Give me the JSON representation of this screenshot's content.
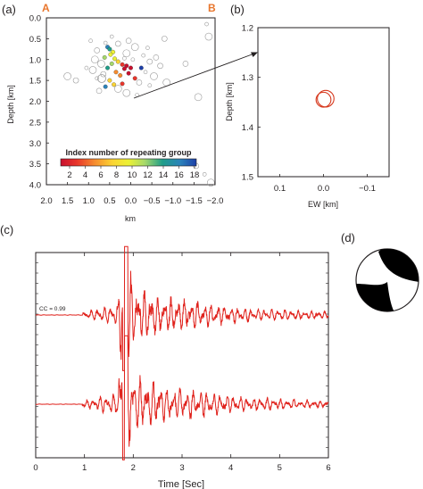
{
  "colors": {
    "trace": "#e0231d",
    "axis": "#231f20",
    "section_letter": "#e8762c",
    "background_events": "#9b9b9b",
    "circle": "#d6381d",
    "colorbar": [
      "#c8102e",
      "#e8362b",
      "#f68c2f",
      "#fbd434",
      "#ecf135",
      "#a6d96a",
      "#1f9e89",
      "#2b83ba",
      "#1c3fa8"
    ]
  },
  "chart_data": [
    {
      "id": "a",
      "type": "scatter",
      "panel_label": "(a)",
      "section_letters": [
        "A",
        "B"
      ],
      "xlabel": "km",
      "ylabel": "Depth [km]",
      "xlim": [
        2.0,
        -2.0
      ],
      "ylim": [
        4.0,
        0.0
      ],
      "xticks": [
        "2.0",
        "1.5",
        "1.0",
        "0.5",
        "0.0",
        "−0.5",
        "−1.0",
        "−1.5",
        "−2.0"
      ],
      "yticks": [
        "0.0",
        "0.5",
        "1.0",
        "1.5",
        "2.0",
        "2.5",
        "3.0",
        "3.5",
        "4.0"
      ],
      "colorbar": {
        "title": "Index number of repeating group",
        "range": [
          1,
          19
        ],
        "ticks": [
          "2",
          "4",
          "6",
          "8",
          "10",
          "12",
          "14",
          "16",
          "18"
        ]
      },
      "repeating_groups": [
        {
          "x": 0.55,
          "y": 0.7,
          "g": 16
        },
        {
          "x": 0.5,
          "y": 0.75,
          "g": 15
        },
        {
          "x": 0.42,
          "y": 0.82,
          "g": 11
        },
        {
          "x": 0.48,
          "y": 0.88,
          "g": 10
        },
        {
          "x": 0.62,
          "y": 0.95,
          "g": 12
        },
        {
          "x": 0.38,
          "y": 0.98,
          "g": 9
        },
        {
          "x": 0.3,
          "y": 1.05,
          "g": 7
        },
        {
          "x": 0.45,
          "y": 1.1,
          "g": 13
        },
        {
          "x": 0.2,
          "y": 1.12,
          "g": 3
        },
        {
          "x": 0.1,
          "y": 1.15,
          "g": 1
        },
        {
          "x": 0.15,
          "y": 1.22,
          "g": 2
        },
        {
          "x": 0.55,
          "y": 1.2,
          "g": 14
        },
        {
          "x": 0.35,
          "y": 1.3,
          "g": 6
        },
        {
          "x": 0.05,
          "y": 1.33,
          "g": 1
        },
        {
          "x": 0.25,
          "y": 1.38,
          "g": 5
        },
        {
          "x": -0.25,
          "y": 1.2,
          "g": 18
        },
        {
          "x": -0.1,
          "y": 1.45,
          "g": 4
        },
        {
          "x": 0.5,
          "y": 1.5,
          "g": 8
        },
        {
          "x": 0.6,
          "y": 1.65,
          "g": 17
        },
        {
          "x": 0.4,
          "y": 1.6,
          "g": 7
        },
        {
          "x": 0.2,
          "y": 1.58,
          "g": 4
        },
        {
          "x": 0.0,
          "y": 1.2,
          "g": 2
        }
      ],
      "background_events": [
        {
          "x": 0.6,
          "y": 0.6
        },
        {
          "x": 0.3,
          "y": 0.62
        },
        {
          "x": -0.1,
          "y": 0.7
        },
        {
          "x": -0.4,
          "y": 0.72
        },
        {
          "x": 0.8,
          "y": 0.78
        },
        {
          "x": 0.1,
          "y": 0.85
        },
        {
          "x": -0.3,
          "y": 0.9
        },
        {
          "x": -0.6,
          "y": 0.95
        },
        {
          "x": 0.85,
          "y": 1.0
        },
        {
          "x": 0.15,
          "y": 0.97
        },
        {
          "x": -0.45,
          "y": 1.05
        },
        {
          "x": 0.7,
          "y": 1.1
        },
        {
          "x": -0.05,
          "y": 1.0
        },
        {
          "x": -0.7,
          "y": 1.15
        },
        {
          "x": 0.9,
          "y": 1.25
        },
        {
          "x": -0.35,
          "y": 1.3
        },
        {
          "x": 0.65,
          "y": 1.35
        },
        {
          "x": -0.55,
          "y": 1.4
        },
        {
          "x": 0.8,
          "y": 1.45
        },
        {
          "x": -0.2,
          "y": 1.55
        },
        {
          "x": 0.3,
          "y": 1.7
        },
        {
          "x": -0.45,
          "y": 1.62
        },
        {
          "x": 0.75,
          "y": 1.75
        },
        {
          "x": 0.1,
          "y": 1.8
        },
        {
          "x": -0.15,
          "y": 1.85
        },
        {
          "x": 1.3,
          "y": 1.5
        },
        {
          "x": 1.5,
          "y": 1.4
        },
        {
          "x": 0.95,
          "y": 0.55
        },
        {
          "x": -0.8,
          "y": 0.5
        },
        {
          "x": -1.85,
          "y": 0.45
        },
        {
          "x": -1.8,
          "y": 0.15
        },
        {
          "x": -1.3,
          "y": 1.1
        },
        {
          "x": -1.6,
          "y": 1.9
        },
        {
          "x": -1.75,
          "y": 3.75
        },
        {
          "x": -1.55,
          "y": 3.55
        },
        {
          "x": -1.9,
          "y": 3.95
        },
        {
          "x": 0.45,
          "y": 0.45
        },
        {
          "x": 0.05,
          "y": 0.55
        },
        {
          "x": -0.85,
          "y": 1.55
        },
        {
          "x": 1.05,
          "y": 1.2
        }
      ]
    },
    {
      "id": "b",
      "type": "scatter",
      "panel_label": "(b)",
      "xlabel": "EW [km]",
      "ylabel": "Depth [km]",
      "xlim": [
        0.15,
        -0.15
      ],
      "ylim": [
        1.5,
        1.2
      ],
      "xticks": [
        "0.1",
        "0.0",
        "−0.1"
      ],
      "yticks": [
        "1.2",
        "1.3",
        "1.4",
        "1.5"
      ],
      "circles": [
        {
          "x": 0.0,
          "y": 1.345,
          "r": 0.017
        },
        {
          "x": -0.005,
          "y": 1.343,
          "r": 0.019
        }
      ]
    },
    {
      "id": "c",
      "type": "line",
      "panel_label": "(c)",
      "xlabel": "Time [Sec]",
      "xlim": [
        0,
        6
      ],
      "xticks": [
        "0",
        "1",
        "2",
        "3",
        "4",
        "5",
        "6"
      ],
      "annotation": "CC = 0.99",
      "series": [
        {
          "baseline": "upper",
          "onset": 0.95,
          "peak_time": 1.85
        },
        {
          "baseline": "lower",
          "onset": 0.95,
          "peak_time": 1.85
        }
      ]
    },
    {
      "id": "d",
      "type": "other",
      "panel_label": "(d)"
    }
  ]
}
